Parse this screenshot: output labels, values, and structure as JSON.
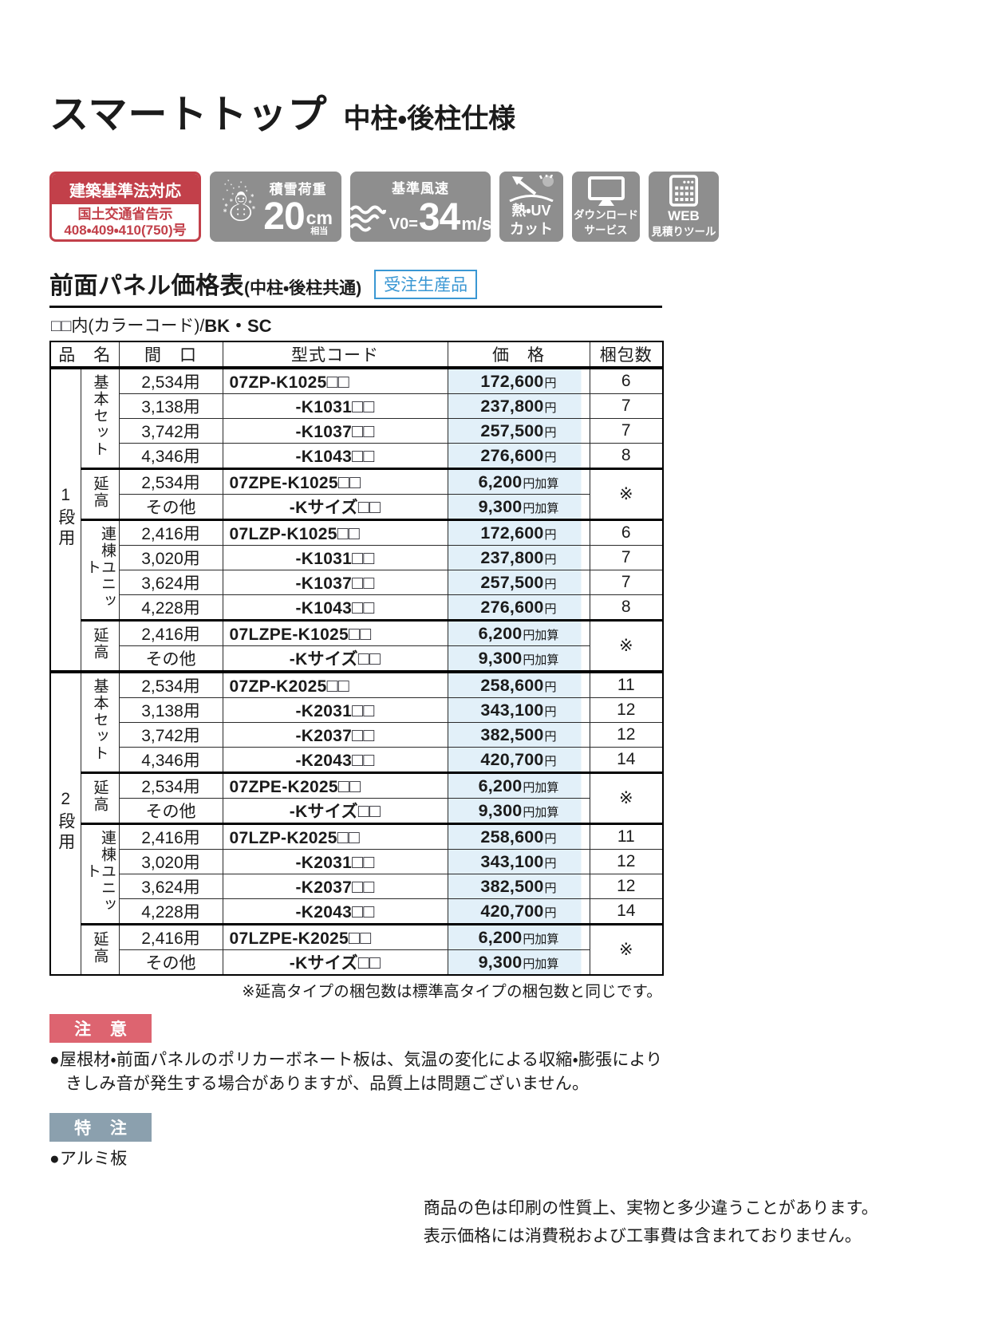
{
  "header": {
    "title": "スマートトップ",
    "subtitle": "中柱・後柱仕様"
  },
  "badges": {
    "law": {
      "top": "建築基準法対応",
      "line1": "国土交通省告示",
      "line2": "408・409・410(750)号"
    },
    "snow": {
      "icon": "☃",
      "label": "積雪荷重",
      "value": "20",
      "unit": "cm",
      "note": "相当"
    },
    "wind": {
      "label": "基準風速",
      "prefix": "V0=",
      "value": "34",
      "unit": "m/s"
    },
    "heat_uv": {
      "line1": "熱・UV",
      "line2": "カット"
    },
    "download": {
      "line1": "ダウンロード",
      "line2": "サービス"
    },
    "web": {
      "line1": "WEB",
      "line2": "見積りツール"
    }
  },
  "section": {
    "title": "前面パネル価格表",
    "scope": "(中柱・後柱共通)",
    "order_badge": "受注生産品",
    "color_note": "□□内(カラーコード)/",
    "color_codes": "BK・SC"
  },
  "table": {
    "headers": {
      "name": "品　名",
      "span": "間　口",
      "code": "型式コード",
      "price": "価　格",
      "pack": "梱包数"
    },
    "sections": [
      {
        "tier": "1段用",
        "groups": [
          {
            "label": "基本セット",
            "rows": [
              {
                "span": "2,534用",
                "code": "07ZP-K1025□□",
                "full": true,
                "price": "172,600",
                "unit": "円",
                "pack": "6"
              },
              {
                "span": "3,138用",
                "code": "-K1031□□",
                "price": "237,800",
                "unit": "円",
                "pack": "7"
              },
              {
                "span": "3,742用",
                "code": "-K1037□□",
                "price": "257,500",
                "unit": "円",
                "pack": "7"
              },
              {
                "span": "4,346用",
                "code": "-K1043□□",
                "price": "276,600",
                "unit": "円",
                "pack": "8"
              }
            ]
          },
          {
            "label": "延高",
            "pack_merged": "※",
            "rows": [
              {
                "span": "2,534用",
                "code": "07ZPE-K1025□□",
                "full": true,
                "price": "6,200",
                "unit": "円加算"
              },
              {
                "span": "その他",
                "code": "-Kサイズ□□",
                "price": "9,300",
                "unit": "円加算"
              }
            ]
          },
          {
            "label": "連棟ユニット",
            "rows": [
              {
                "span": "2,416用",
                "code": "07LZP-K1025□□",
                "full": true,
                "price": "172,600",
                "unit": "円",
                "pack": "6"
              },
              {
                "span": "3,020用",
                "code": "-K1031□□",
                "price": "237,800",
                "unit": "円",
                "pack": "7"
              },
              {
                "span": "3,624用",
                "code": "-K1037□□",
                "price": "257,500",
                "unit": "円",
                "pack": "7"
              },
              {
                "span": "4,228用",
                "code": "-K1043□□",
                "price": "276,600",
                "unit": "円",
                "pack": "8"
              }
            ]
          },
          {
            "label": "延高",
            "pack_merged": "※",
            "rows": [
              {
                "span": "2,416用",
                "code": "07LZPE-K1025□□",
                "full": true,
                "price": "6,200",
                "unit": "円加算"
              },
              {
                "span": "その他",
                "code": "-Kサイズ□□",
                "price": "9,300",
                "unit": "円加算"
              }
            ]
          }
        ]
      },
      {
        "tier": "2段用",
        "groups": [
          {
            "label": "基本セット",
            "rows": [
              {
                "span": "2,534用",
                "code": "07ZP-K2025□□",
                "full": true,
                "price": "258,600",
                "unit": "円",
                "pack": "11"
              },
              {
                "span": "3,138用",
                "code": "-K2031□□",
                "price": "343,100",
                "unit": "円",
                "pack": "12"
              },
              {
                "span": "3,742用",
                "code": "-K2037□□",
                "price": "382,500",
                "unit": "円",
                "pack": "12"
              },
              {
                "span": "4,346用",
                "code": "-K2043□□",
                "price": "420,700",
                "unit": "円",
                "pack": "14"
              }
            ]
          },
          {
            "label": "延高",
            "pack_merged": "※",
            "rows": [
              {
                "span": "2,534用",
                "code": "07ZPE-K2025□□",
                "full": true,
                "price": "6,200",
                "unit": "円加算"
              },
              {
                "span": "その他",
                "code": "-Kサイズ□□",
                "price": "9,300",
                "unit": "円加算"
              }
            ]
          },
          {
            "label": "連棟ユニット",
            "rows": [
              {
                "span": "2,416用",
                "code": "07LZP-K2025□□",
                "full": true,
                "price": "258,600",
                "unit": "円",
                "pack": "11"
              },
              {
                "span": "3,020用",
                "code": "-K2031□□",
                "price": "343,100",
                "unit": "円",
                "pack": "12"
              },
              {
                "span": "3,624用",
                "code": "-K2037□□",
                "price": "382,500",
                "unit": "円",
                "pack": "12"
              },
              {
                "span": "4,228用",
                "code": "-K2043□□",
                "price": "420,700",
                "unit": "円",
                "pack": "14"
              }
            ]
          },
          {
            "label": "延高",
            "pack_merged": "※",
            "rows": [
              {
                "span": "2,416用",
                "code": "07LZPE-K2025□□",
                "full": true,
                "price": "6,200",
                "unit": "円加算"
              },
              {
                "span": "その他",
                "code": "-Kサイズ□□",
                "price": "9,300",
                "unit": "円加算"
              }
            ]
          }
        ]
      }
    ],
    "footnote": "※延高タイプの梱包数は標準高タイプの梱包数と同じです。"
  },
  "notes": {
    "caution_label": "注 意",
    "caution_lines": [
      "●屋根材・前面パネルのポリカーボネート板は、気温の変化による収縮・膨張により",
      "きしみ音が発生する場合がありますが、品質上は問題ございません。"
    ],
    "special_label": "特 注",
    "special_line": "●アルミ板"
  },
  "footer": {
    "line1": "商品の色は印刷の性質上、実物と多少違うことがあります。",
    "line2": "表示価格には消費税および工事費は含まれておりません。"
  },
  "colors": {
    "law_red": "#c2404a",
    "badge_gray": "#8e8e8e",
    "order_blue": "#3a97d3",
    "price_bg": "#e2f0f9",
    "caution_pink": "#dd6470",
    "special_gray_blue": "#8ba0ae"
  }
}
